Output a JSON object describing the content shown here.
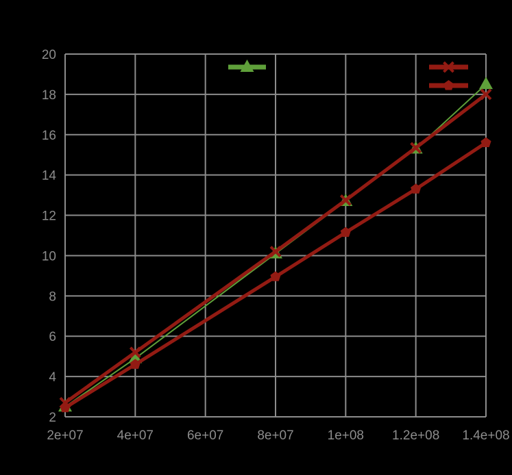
{
  "chart_data": {
    "type": "line",
    "title": "",
    "xlabel": "",
    "ylabel": "",
    "x": [
      20000000,
      40000000,
      80000000,
      100000000,
      120000000,
      140000000
    ],
    "xlim": [
      20000000,
      140000000
    ],
    "ylim": [
      2,
      20
    ],
    "x_ticks": [
      20000000,
      40000000,
      60000000,
      80000000,
      100000000,
      120000000,
      140000000
    ],
    "x_tick_labels": [
      "2e+07",
      "4e+07",
      "6e+07",
      "8e+07",
      "1e+08",
      "1.2e+08",
      "1.4e+08"
    ],
    "y_ticks": [
      2,
      4,
      6,
      8,
      10,
      12,
      14,
      16,
      18,
      20
    ],
    "y_tick_labels": [
      "2",
      "4",
      "6",
      "8",
      "10",
      "12",
      "14",
      "16",
      "18",
      "20"
    ],
    "grid": true,
    "legend_position": "top",
    "series": [
      {
        "name": "",
        "marker": "triangle",
        "color": "#5fa03a",
        "width": 2,
        "values": [
          2.5,
          4.9,
          10.1,
          12.7,
          15.3,
          18.5
        ]
      },
      {
        "name": "",
        "marker": "x",
        "color": "#931b13",
        "width": 5,
        "values": [
          2.7,
          5.2,
          10.2,
          12.75,
          15.35,
          18.0
        ]
      },
      {
        "name": "",
        "marker": "pentagon",
        "color": "#931b13",
        "width": 5,
        "values": [
          2.45,
          4.6,
          8.95,
          11.15,
          13.3,
          15.6
        ]
      }
    ]
  },
  "colors": {
    "background": "#000000",
    "grid": "#8c8c8c",
    "tick_text": "#8c8c8c"
  }
}
